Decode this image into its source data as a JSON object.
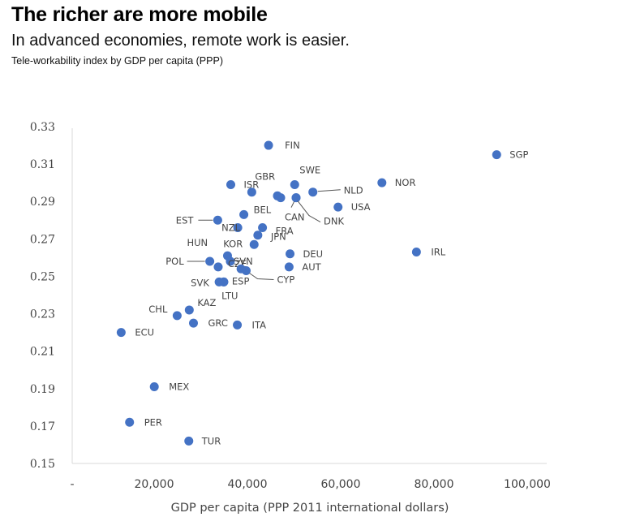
{
  "header": {
    "title": "The richer are more mobile",
    "subtitle": "In advanced economies, remote work is easier.",
    "caption": "Tele-workability index by GDP per capita (PPP)"
  },
  "colors": {
    "point": "#4472C4",
    "axis": "#d9d9d9",
    "text": "#444444"
  },
  "chart_data": {
    "type": "scatter",
    "title": "Tele-workability index by GDP per capita (PPP)",
    "xlabel": "GDP per capita (PPP 2011 international dollars)",
    "ylabel": "",
    "xlim": [
      0,
      100000
    ],
    "ylim": [
      0.15,
      0.33
    ],
    "xticks": [
      0,
      20000,
      40000,
      60000,
      80000,
      100000
    ],
    "xtick_labels": [
      "-",
      "20,000",
      "40,000",
      "60,000",
      "80,000",
      "100,000"
    ],
    "yticks": [
      0.15,
      0.17,
      0.19,
      0.21,
      0.23,
      0.25,
      0.27,
      0.29,
      0.31,
      0.33
    ],
    "ytick_labels": [
      "0.15",
      "0.17",
      "0.19",
      "0.21",
      "0.23",
      "0.25",
      "0.27",
      "0.29",
      "0.31",
      "0.33"
    ],
    "grid": false,
    "points": [
      {
        "label": "FIN",
        "x": 42100,
        "y": 0.32
      },
      {
        "label": "SGP",
        "x": 91000,
        "y": 0.315
      },
      {
        "label": "SWE",
        "x": 47700,
        "y": 0.299
      },
      {
        "label": "NOR",
        "x": 66400,
        "y": 0.3
      },
      {
        "label": "ISR",
        "x": 34000,
        "y": 0.299
      },
      {
        "label": "GBR",
        "x": 38500,
        "y": 0.295
      },
      {
        "label": "NLD",
        "x": 51600,
        "y": 0.295
      },
      {
        "label": "",
        "x": 44000,
        "y": 0.293
      },
      {
        "label": "",
        "x": 44700,
        "y": 0.292
      },
      {
        "label": "CAN",
        "x": 48000,
        "y": 0.292
      },
      {
        "label": "USA",
        "x": 57000,
        "y": 0.287
      },
      {
        "label": "DNK",
        "x": 48000,
        "y": 0.292
      },
      {
        "label": "BEL",
        "x": 36800,
        "y": 0.283
      },
      {
        "label": "EST",
        "x": 31200,
        "y": 0.28
      },
      {
        "label": "NZL",
        "x": 35500,
        "y": 0.276
      },
      {
        "label": "FRA",
        "x": 40800,
        "y": 0.276
      },
      {
        "label": "JPN",
        "x": 39800,
        "y": 0.272
      },
      {
        "label": "KOR",
        "x": 39000,
        "y": 0.267
      },
      {
        "label": "IRL",
        "x": 73800,
        "y": 0.263
      },
      {
        "label": "DEU",
        "x": 46700,
        "y": 0.262
      },
      {
        "label": "HUN",
        "x": 33300,
        "y": 0.261
      },
      {
        "label": "SVN",
        "x": 33900,
        "y": 0.258
      },
      {
        "label": "POL",
        "x": 29500,
        "y": 0.258
      },
      {
        "label": "CZE",
        "x": 31300,
        "y": 0.255
      },
      {
        "label": "AUT",
        "x": 46500,
        "y": 0.255
      },
      {
        "label": "CYP",
        "x": 37300,
        "y": 0.253
      },
      {
        "label": "",
        "x": 36200,
        "y": 0.254
      },
      {
        "label": "ESP",
        "x": 32500,
        "y": 0.247
      },
      {
        "label": "SVK",
        "x": 32500,
        "y": 0.247
      },
      {
        "label": "LTU",
        "x": 31500,
        "y": 0.247
      },
      {
        "label": "KAZ",
        "x": 25100,
        "y": 0.232
      },
      {
        "label": "CHL",
        "x": 22500,
        "y": 0.229
      },
      {
        "label": "GRC",
        "x": 26000,
        "y": 0.225
      },
      {
        "label": "ITA",
        "x": 35400,
        "y": 0.224
      },
      {
        "label": "ECU",
        "x": 10500,
        "y": 0.22
      },
      {
        "label": "MEX",
        "x": 17600,
        "y": 0.191
      },
      {
        "label": "PER",
        "x": 12300,
        "y": 0.172
      },
      {
        "label": "TUR",
        "x": 25000,
        "y": 0.162
      }
    ]
  }
}
